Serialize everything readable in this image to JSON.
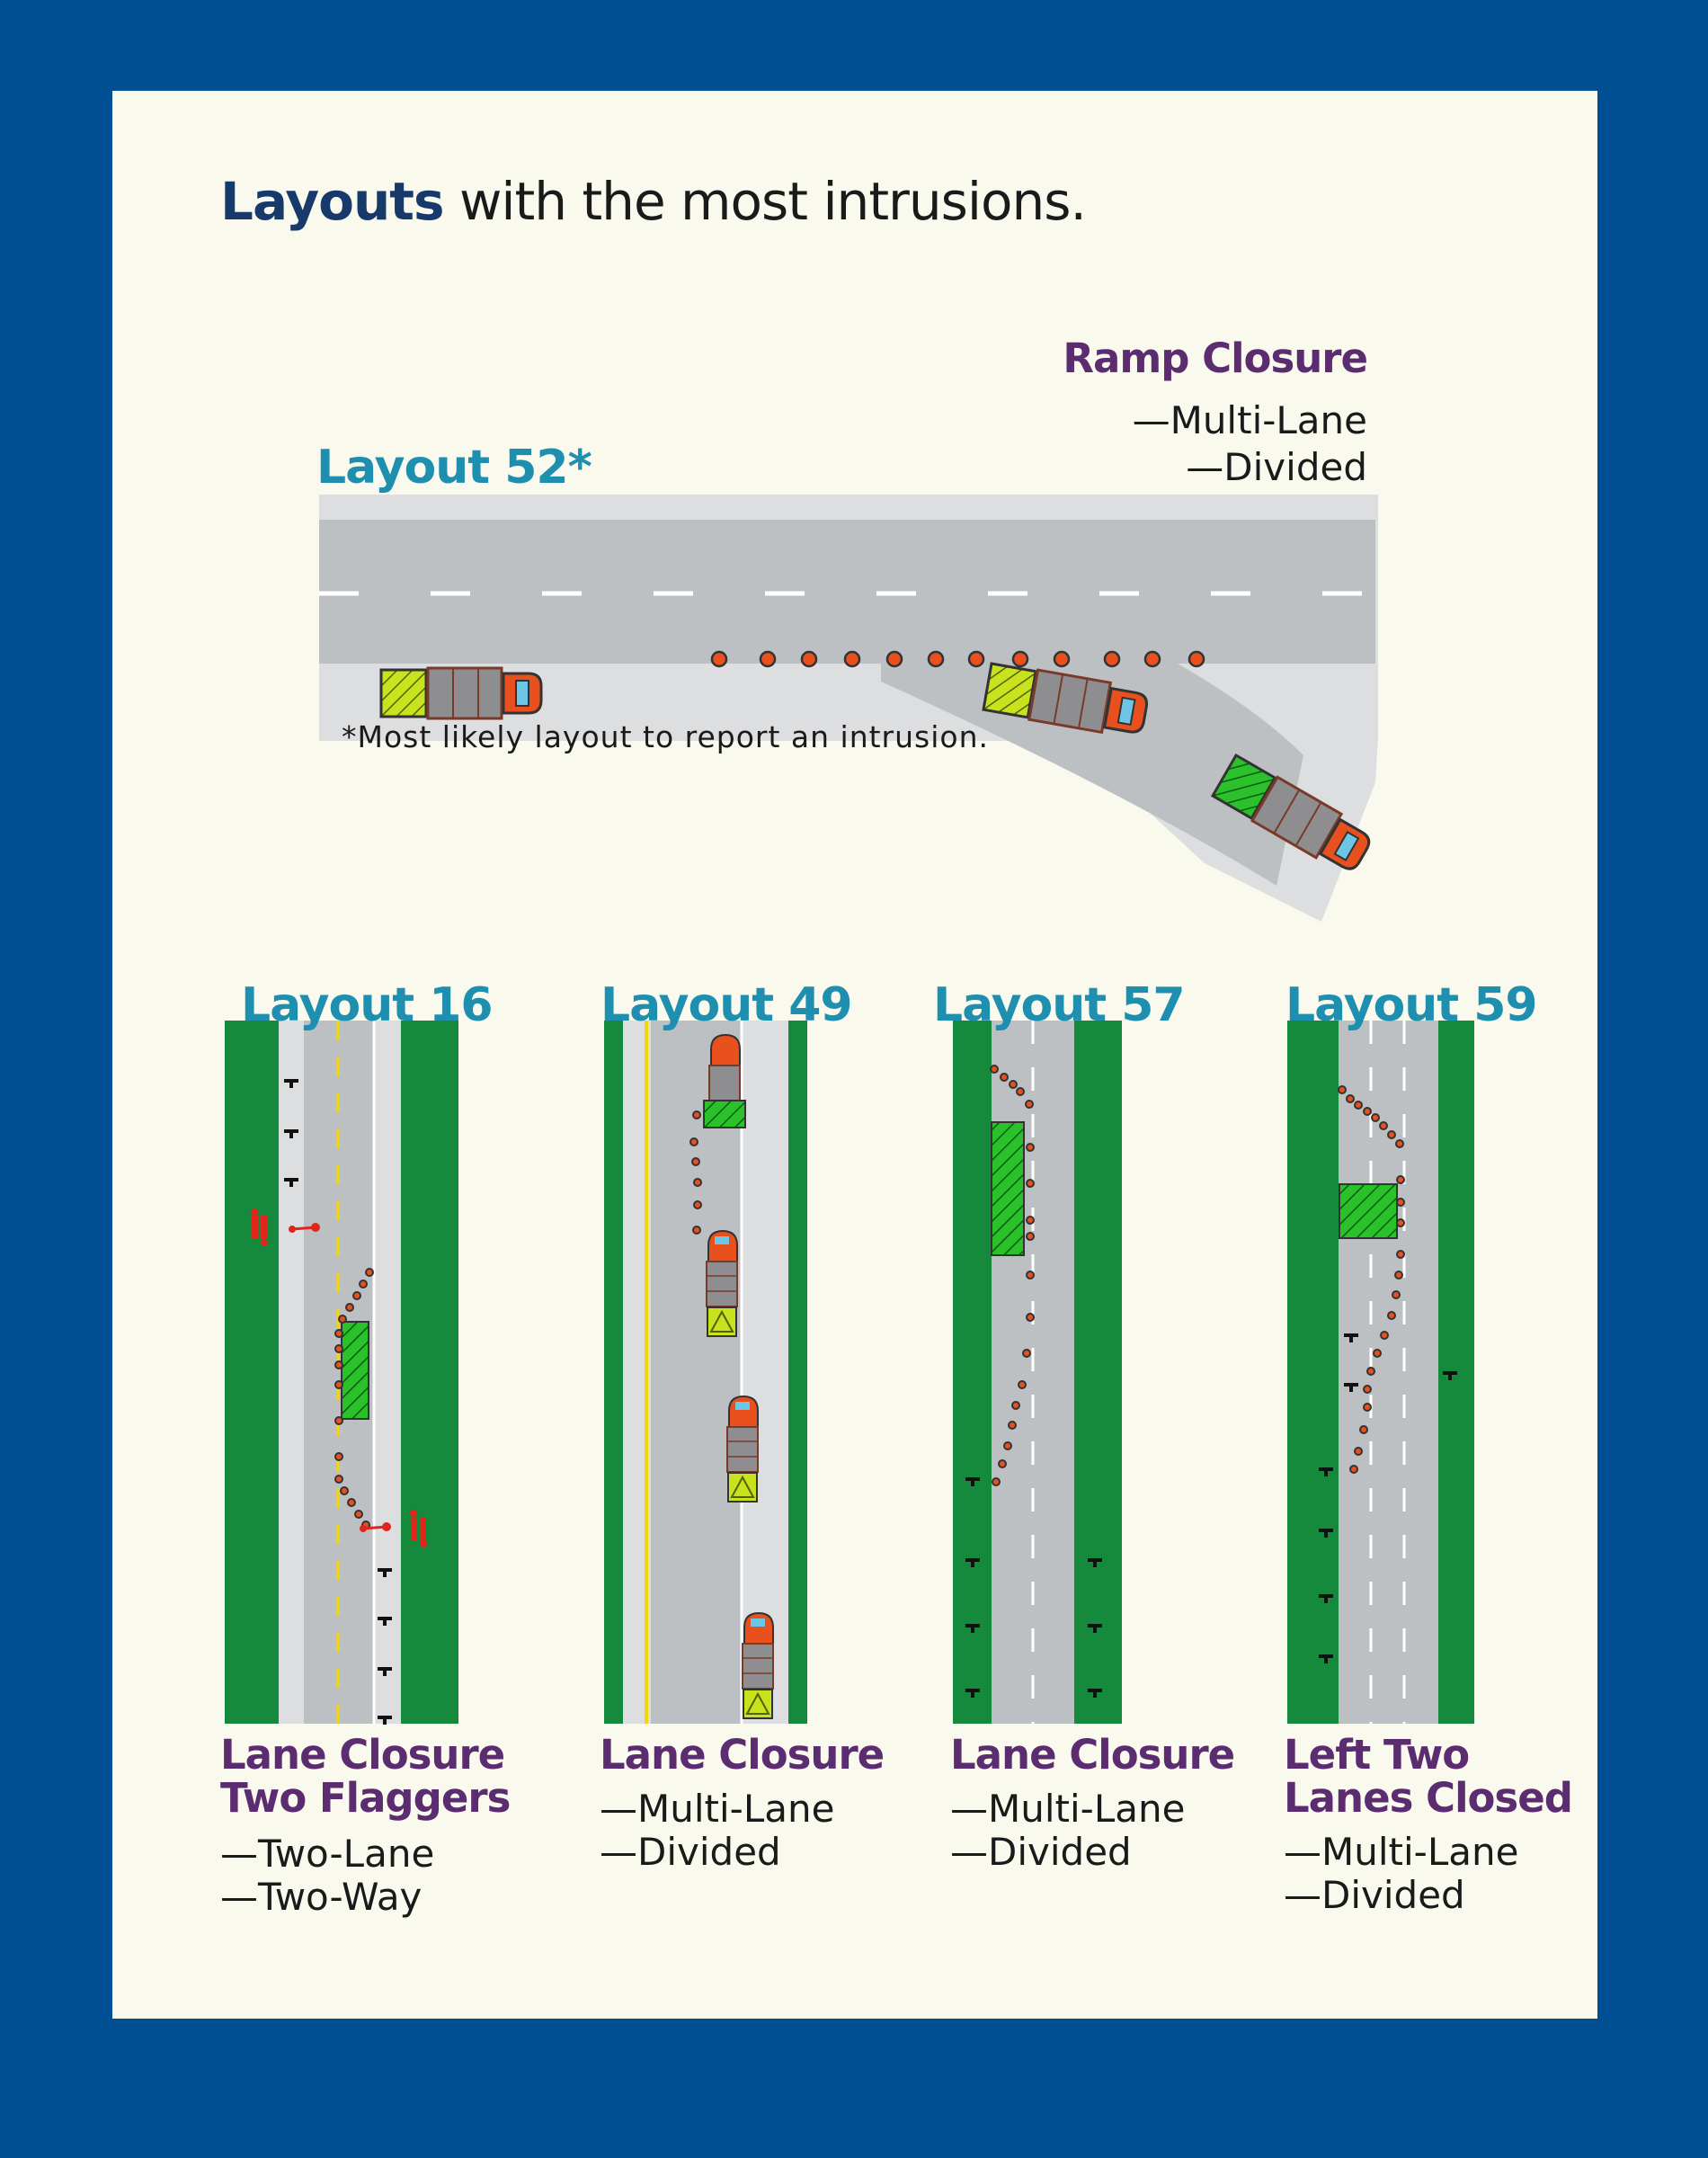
{
  "header": {
    "strong": "Layouts",
    "rest": " with the most intrusions."
  },
  "top": {
    "layout_label": "Layout 52*",
    "caption": "Ramp Closure",
    "lines": [
      "—Multi-Lane",
      "—Divided"
    ],
    "note": "*Most likely layout to report an intrusion."
  },
  "layouts": [
    {
      "label": "Layout  16",
      "caption": [
        "Lane Closure",
        "Two Flaggers"
      ],
      "lines": [
        "—Two-Lane",
        "—Two-Way"
      ]
    },
    {
      "label": "Layout 49",
      "caption": [
        "Lane Closure"
      ],
      "lines": [
        "—Multi-Lane",
        "—Divided"
      ]
    },
    {
      "label": "Layout 57",
      "caption": [
        "Lane Closure"
      ],
      "lines": [
        "—Multi-Lane",
        "—Divided"
      ]
    },
    {
      "label": "Layout 59",
      "caption": [
        "Left Two",
        "Lanes Closed"
      ],
      "lines": [
        "—Multi-Lane",
        "—Divided"
      ]
    }
  ],
  "colors": {
    "background": "#004F93",
    "panel": "#FAF9EE",
    "road": "#BCC0C2",
    "shoulder": "#DDDEE0",
    "grass": "#168A3C",
    "cone": "#E8501E",
    "layout_label": "#1F8FB0",
    "caption": "#5B2C6F"
  },
  "icons": [
    "truck-icon",
    "traffic-cone-icon",
    "flagger-icon",
    "sign-icon"
  ]
}
